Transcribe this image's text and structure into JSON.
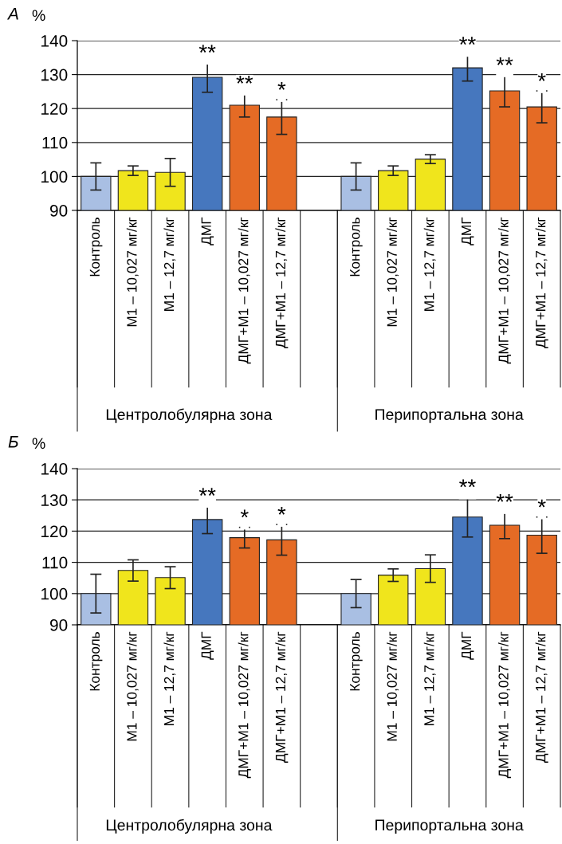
{
  "chart_data": [
    {
      "type": "bar",
      "title": "А",
      "ylabel": "%",
      "categories": [
        "Контроль",
        "М1 – 10,027 мг/кг",
        "М1 – 12,7 мг/кг",
        "ДМГ",
        "ДМГ+М1 – 10,027 мг/кг",
        "ДМГ+М1 – 12,7 мг/кг",
        null,
        "Контроль",
        "М1 – 10,027 мг/кг",
        "М1 – 12,7 мг/кг",
        "ДМГ",
        "ДМГ+М1 – 10,027 мг/кг",
        "ДМГ+М1 – 12,7 мг/кг"
      ],
      "values": [
        100,
        101.7,
        101.2,
        129.2,
        121.0,
        117.5,
        null,
        100,
        101.7,
        105.1,
        132.0,
        125.2,
        120.5
      ],
      "errors": [
        4,
        1.4,
        4.1,
        4.4,
        3.5,
        5.1,
        null,
        4,
        1.4,
        1.3,
        3.9,
        4.7,
        4.7
      ],
      "value_labels": [
        null,
        null,
        null,
        "**",
        "**",
        "*",
        null,
        null,
        null,
        null,
        "**",
        "**",
        "*"
      ],
      "colors": [
        "#a9bfe3",
        "#f0e51c",
        "#f0e51c",
        "#4677be",
        "#e56b25",
        "#e56b25",
        "#ffffff",
        "#a9bfe3",
        "#f0e51c",
        "#f0e51c",
        "#4677be",
        "#e56b25",
        "#e56b25"
      ],
      "ylim": [
        90,
        140
      ],
      "yticks": [
        90,
        100,
        110,
        120,
        130,
        140
      ],
      "grid": "y",
      "annotations": [
        "Центролобулярна зона",
        "Перипортальна зона"
      ]
    },
    {
      "type": "bar",
      "title": "Б",
      "ylabel": "%",
      "categories": [
        "Контроль",
        "М1 – 10,027 мг/кг",
        "М1 – 12,7 мг/кг",
        "ДМГ",
        "ДМГ+М1 – 10,027 мг/кг",
        "ДМГ+М1 – 12,7 мг/кг",
        null,
        "Контроль",
        "М1 – 10,027 мг/кг",
        "М1 – 12,7 мг/кг",
        "ДМГ",
        "ДМГ+М1 – 10,027 мг/кг",
        "ДМГ+М1 – 12,7 мг/кг"
      ],
      "values": [
        100,
        107.4,
        105.1,
        123.7,
        117.9,
        117.2,
        null,
        100,
        105.9,
        108.0,
        124.5,
        121.9,
        118.7
      ],
      "errors": [
        6.2,
        3.4,
        3.5,
        4.5,
        3.3,
        4.9,
        null,
        4.5,
        2.0,
        4.4,
        6.4,
        4.3,
        5.8
      ],
      "value_labels": [
        null,
        null,
        null,
        "**",
        "*",
        "*",
        null,
        null,
        null,
        null,
        "**",
        "**",
        "*"
      ],
      "colors": [
        "#a9bfe3",
        "#f0e51c",
        "#f0e51c",
        "#4677be",
        "#e56b25",
        "#e56b25",
        "#ffffff",
        "#a9bfe3",
        "#f0e51c",
        "#f0e51c",
        "#4677be",
        "#e56b25",
        "#e56b25"
      ],
      "ylim": [
        90,
        140
      ],
      "yticks": [
        90,
        100,
        110,
        120,
        130,
        140
      ],
      "grid": "y",
      "annotations": [
        "Центролобулярна зона",
        "Перипортальна зона"
      ]
    }
  ]
}
